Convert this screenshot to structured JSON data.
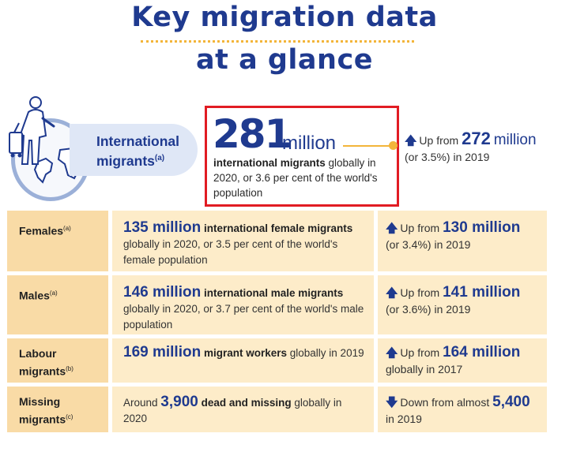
{
  "title": {
    "line1": "Key migration data",
    "line2": "at a glance"
  },
  "hero": {
    "label": "International migrants",
    "label_note": "(a)",
    "number": "281",
    "unit": "million",
    "desc_bold": "international migrants",
    "desc_rest": " globally in 2020, or 3.6 per cent of the world's population",
    "up_prefix": "Up from",
    "up_value": "272",
    "up_unit": "million",
    "up_rest": "(or 3.5%) in 2019"
  },
  "rows": [
    {
      "label": "Females",
      "note": "(a)",
      "stat": "135 million",
      "bold": "international female migrants",
      "rest": " globally in 2020, or 3.5 per cent of the world's female population",
      "arrow": "up",
      "change_prefix": "Up from",
      "change_value": "130 million",
      "change_rest": "(or 3.4%) in 2019"
    },
    {
      "label": "Males",
      "note": "(a)",
      "stat": "146 million",
      "bold": "international male migrants",
      "rest": " globally in 2020, or 3.7 per cent of the world's male population",
      "arrow": "up",
      "change_prefix": "Up from",
      "change_value": "141 million",
      "change_rest": "(or 3.6%) in 2019"
    },
    {
      "label": "Labour migrants",
      "note": "(b)",
      "stat": "169 million",
      "bold": "migrant workers",
      "rest": " globally in 2019",
      "arrow": "up",
      "change_prefix": "Up from",
      "change_value": "164 million",
      "change_rest": "globally in 2017"
    },
    {
      "label": "Missing migrants",
      "note": "(c)",
      "pre": "Around ",
      "stat": "3,900",
      "bold": "dead and missing",
      "rest": " globally in 2020",
      "arrow": "down",
      "change_prefix": "Down from almost",
      "change_value": "5,400",
      "change_rest": "in 2019"
    }
  ],
  "colors": {
    "navy": "#1f3a8f",
    "label_bg": "#f9dba6",
    "cell_bg": "#fdecc9",
    "accent": "#f3b53a",
    "highlight": "#e11c23"
  },
  "icons": {
    "up": "arrow-up-icon",
    "down": "arrow-down-icon",
    "hero": "traveller-globe-icon"
  }
}
